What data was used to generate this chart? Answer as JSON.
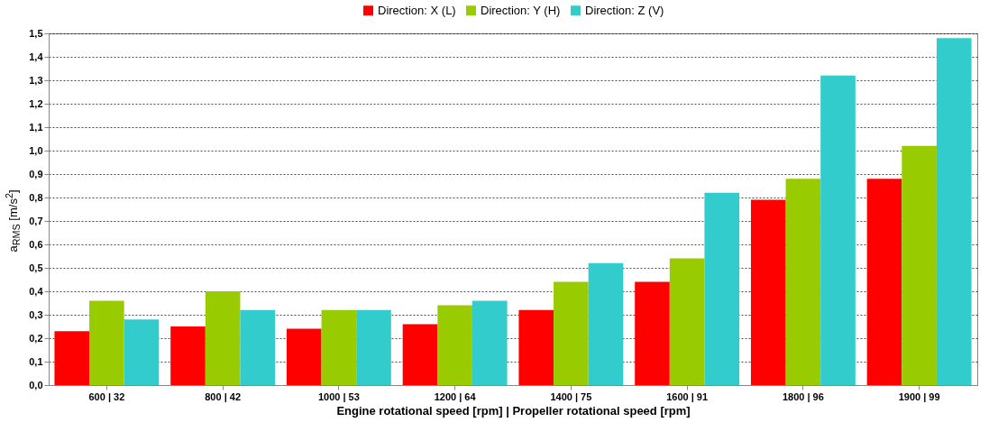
{
  "chart_data": {
    "type": "bar",
    "xlabel": "Engine rotational speed [rpm] | Propeller rotational speed [rpm]",
    "ylabel": "a$_{RMS}$ [m/s$^{2}$]",
    "categories": [
      "600 | 32",
      "800 | 42",
      "1000 | 53",
      "1200 | 64",
      "1400 | 75",
      "1600 | 91",
      "1800 | 96",
      "1900 | 99"
    ],
    "series": [
      {
        "name": "Direction: X (L)",
        "color": "#ff0000",
        "values": [
          0.23,
          0.25,
          0.24,
          0.26,
          0.32,
          0.44,
          0.79,
          0.88
        ]
      },
      {
        "name": "Direction: Y (H)",
        "color": "#99cc00",
        "values": [
          0.36,
          0.4,
          0.32,
          0.34,
          0.44,
          0.54,
          0.88,
          1.02
        ]
      },
      {
        "name": "Direction: Z (V)",
        "color": "#33cccc",
        "values": [
          0.28,
          0.32,
          0.32,
          0.36,
          0.52,
          0.82,
          1.32,
          1.48
        ]
      }
    ],
    "ylim": [
      0,
      1.5
    ],
    "yticks": [
      {
        "value": 0,
        "label": "0,0"
      },
      {
        "value": 0.1,
        "label": "0,1"
      },
      {
        "value": 0.2,
        "label": "0,2"
      },
      {
        "value": 0.3,
        "label": "0,3"
      },
      {
        "value": 0.4,
        "label": "0,4"
      },
      {
        "value": 0.5,
        "label": "0,5"
      },
      {
        "value": 0.6,
        "label": "0,6"
      },
      {
        "value": 0.7,
        "label": "0,7"
      },
      {
        "value": 0.8,
        "label": "0,8"
      },
      {
        "value": 0.9,
        "label": "0,9"
      },
      {
        "value": 1.0,
        "label": "1,0"
      },
      {
        "value": 1.1,
        "label": "1,1"
      },
      {
        "value": 1.2,
        "label": "1,2"
      },
      {
        "value": 1.3,
        "label": "1,3"
      },
      {
        "value": 1.4,
        "label": "1,4"
      },
      {
        "value": 1.5,
        "label": "1,5"
      }
    ],
    "grid": "y",
    "legend": "top"
  }
}
